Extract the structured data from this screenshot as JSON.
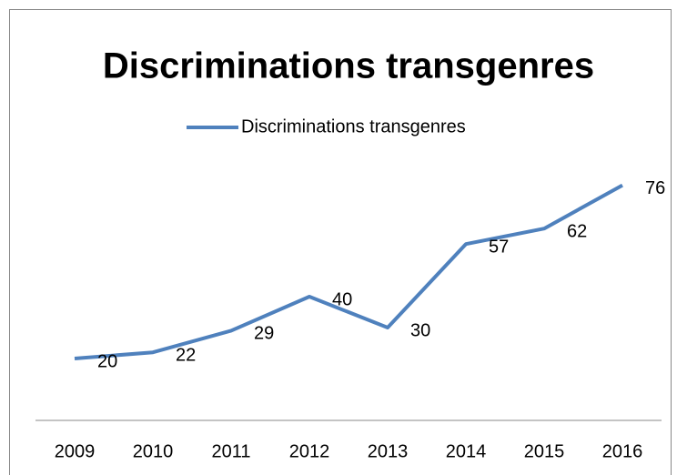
{
  "chart_data": {
    "type": "line",
    "title": "Discriminations transgenres",
    "categories": [
      "2009",
      "2010",
      "2011",
      "2012",
      "2013",
      "2014",
      "2015",
      "2016"
    ],
    "series": [
      {
        "name": "Discriminations transgenres",
        "color": "#4f81bd",
        "values": [
          20,
          22,
          29,
          40,
          30,
          57,
          62,
          76
        ]
      }
    ],
    "ylim": [
      0,
      80
    ],
    "legend": "top"
  }
}
